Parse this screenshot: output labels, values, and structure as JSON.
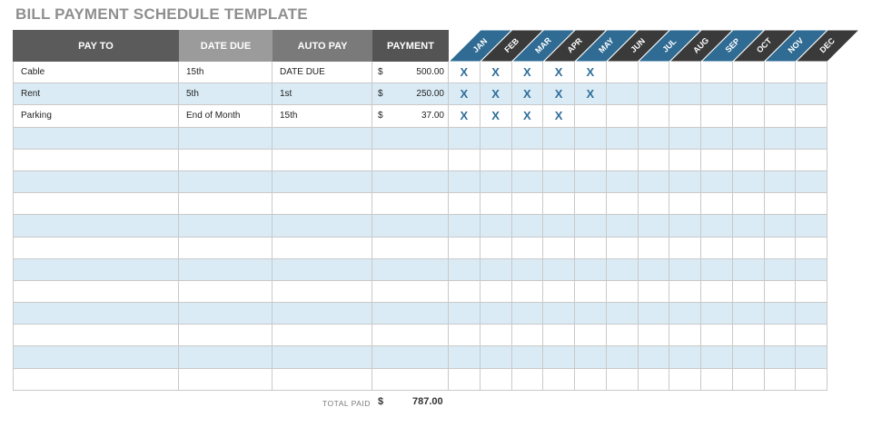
{
  "title": "BILL PAYMENT SCHEDULE TEMPLATE",
  "headers": {
    "pay_to": "PAY TO",
    "date_due": "DATE DUE",
    "auto_pay": "AUTO PAY",
    "payment": "PAYMENT"
  },
  "months": [
    "JAN",
    "FEB",
    "MAR",
    "APR",
    "MAY",
    "JUN",
    "JUL",
    "AUG",
    "SEP",
    "OCT",
    "NOV",
    "DEC"
  ],
  "colors": {
    "pay_to_header": "#5b5b5b",
    "date_due_header": "#9b9b9b",
    "auto_pay_header": "#7a7a7a",
    "payment_header": "#545454",
    "month_blue": "#2f6b93",
    "month_dark": "#3a3a3a",
    "alt_row": "#daebf5",
    "mark": "#2f6e9a"
  },
  "currency_symbol": "$",
  "paid_mark": "X",
  "rows": [
    {
      "pay_to": "Cable",
      "date_due": "15th",
      "auto_pay": "DATE DUE",
      "amount": "500.00",
      "paid": [
        1,
        1,
        1,
        1,
        1,
        0,
        0,
        0,
        0,
        0,
        0,
        0
      ]
    },
    {
      "pay_to": "Rent",
      "date_due": "5th",
      "auto_pay": "1st",
      "amount": "250.00",
      "paid": [
        1,
        1,
        1,
        1,
        1,
        0,
        0,
        0,
        0,
        0,
        0,
        0
      ]
    },
    {
      "pay_to": "Parking",
      "date_due": "End of Month",
      "auto_pay": "15th",
      "amount": "37.00",
      "paid": [
        1,
        1,
        1,
        1,
        0,
        0,
        0,
        0,
        0,
        0,
        0,
        0
      ]
    },
    {
      "pay_to": "",
      "date_due": "",
      "auto_pay": "",
      "amount": "",
      "paid": [
        0,
        0,
        0,
        0,
        0,
        0,
        0,
        0,
        0,
        0,
        0,
        0
      ]
    },
    {
      "pay_to": "",
      "date_due": "",
      "auto_pay": "",
      "amount": "",
      "paid": [
        0,
        0,
        0,
        0,
        0,
        0,
        0,
        0,
        0,
        0,
        0,
        0
      ]
    },
    {
      "pay_to": "",
      "date_due": "",
      "auto_pay": "",
      "amount": "",
      "paid": [
        0,
        0,
        0,
        0,
        0,
        0,
        0,
        0,
        0,
        0,
        0,
        0
      ]
    },
    {
      "pay_to": "",
      "date_due": "",
      "auto_pay": "",
      "amount": "",
      "paid": [
        0,
        0,
        0,
        0,
        0,
        0,
        0,
        0,
        0,
        0,
        0,
        0
      ]
    },
    {
      "pay_to": "",
      "date_due": "",
      "auto_pay": "",
      "amount": "",
      "paid": [
        0,
        0,
        0,
        0,
        0,
        0,
        0,
        0,
        0,
        0,
        0,
        0
      ]
    },
    {
      "pay_to": "",
      "date_due": "",
      "auto_pay": "",
      "amount": "",
      "paid": [
        0,
        0,
        0,
        0,
        0,
        0,
        0,
        0,
        0,
        0,
        0,
        0
      ]
    },
    {
      "pay_to": "",
      "date_due": "",
      "auto_pay": "",
      "amount": "",
      "paid": [
        0,
        0,
        0,
        0,
        0,
        0,
        0,
        0,
        0,
        0,
        0,
        0
      ]
    },
    {
      "pay_to": "",
      "date_due": "",
      "auto_pay": "",
      "amount": "",
      "paid": [
        0,
        0,
        0,
        0,
        0,
        0,
        0,
        0,
        0,
        0,
        0,
        0
      ]
    },
    {
      "pay_to": "",
      "date_due": "",
      "auto_pay": "",
      "amount": "",
      "paid": [
        0,
        0,
        0,
        0,
        0,
        0,
        0,
        0,
        0,
        0,
        0,
        0
      ]
    },
    {
      "pay_to": "",
      "date_due": "",
      "auto_pay": "",
      "amount": "",
      "paid": [
        0,
        0,
        0,
        0,
        0,
        0,
        0,
        0,
        0,
        0,
        0,
        0
      ]
    },
    {
      "pay_to": "",
      "date_due": "",
      "auto_pay": "",
      "amount": "",
      "paid": [
        0,
        0,
        0,
        0,
        0,
        0,
        0,
        0,
        0,
        0,
        0,
        0
      ]
    },
    {
      "pay_to": "",
      "date_due": "",
      "auto_pay": "",
      "amount": "",
      "paid": [
        0,
        0,
        0,
        0,
        0,
        0,
        0,
        0,
        0,
        0,
        0,
        0
      ]
    }
  ],
  "total": {
    "label": "TOTAL PAID",
    "currency": "$",
    "value": "787.00"
  }
}
